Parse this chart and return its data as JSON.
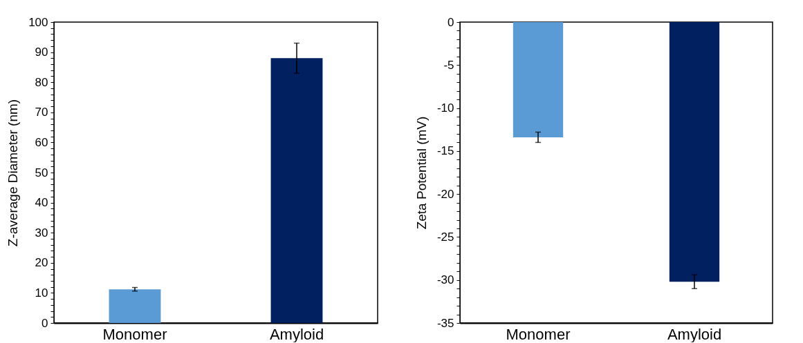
{
  "chart_data": [
    {
      "type": "bar",
      "categories": [
        "Monomer",
        "Amyloid"
      ],
      "values": [
        11.2,
        88
      ],
      "errors": [
        0.6,
        5
      ],
      "colors": [
        "#5b9bd5",
        "#002060"
      ],
      "ylabel": "Z-average Diameter (nm)",
      "ylim": [
        0,
        100
      ],
      "yticks": [
        0,
        {
          "value": 2,
          "label": null
        },
        {
          "value": 4,
          "label": null
        },
        {
          "value": 6,
          "label": null
        },
        {
          "value": 8,
          "label": null
        },
        10,
        {
          "value": 12,
          "label": null
        },
        {
          "value": 14,
          "label": null
        },
        {
          "value": 16,
          "label": null
        },
        {
          "value": 18,
          "label": null
        },
        20,
        {
          "value": 22,
          "label": null
        },
        {
          "value": 24,
          "label": null
        },
        {
          "value": 26,
          "label": null
        },
        {
          "value": 28,
          "label": null
        },
        30,
        {
          "value": 32,
          "label": null
        },
        {
          "value": 34,
          "label": null
        },
        {
          "value": 36,
          "label": null
        },
        {
          "value": 38,
          "label": null
        },
        40,
        {
          "value": 42,
          "label": null
        },
        {
          "value": 44,
          "label": null
        },
        {
          "value": 46,
          "label": null
        },
        {
          "value": 48,
          "label": null
        },
        50,
        {
          "value": 52,
          "label": null
        },
        {
          "value": 54,
          "label": null
        },
        {
          "value": 56,
          "label": null
        },
        {
          "value": 58,
          "label": null
        },
        60,
        {
          "value": 62,
          "label": null
        },
        {
          "value": 64,
          "label": null
        },
        {
          "value": 66,
          "label": null
        },
        {
          "value": 68,
          "label": null
        },
        70,
        {
          "value": 72,
          "label": null
        },
        {
          "value": 74,
          "label": null
        },
        {
          "value": 76,
          "label": null
        },
        {
          "value": 78,
          "label": null
        },
        80,
        {
          "value": 82,
          "label": null
        },
        {
          "value": 84,
          "label": null
        },
        {
          "value": 86,
          "label": null
        },
        {
          "value": 88,
          "label": null
        },
        90,
        {
          "value": 92,
          "label": null
        },
        {
          "value": 94,
          "label": null
        },
        {
          "value": 96,
          "label": null
        },
        {
          "value": 98,
          "label": null
        },
        100
      ],
      "grid": false
    },
    {
      "type": "bar",
      "categories": [
        "Monomer",
        "Amyloid"
      ],
      "values": [
        -13.4,
        -30.2
      ],
      "errors": [
        0.6,
        0.8
      ],
      "colors": [
        "#5b9bd5",
        "#002060"
      ],
      "ylabel": "Zeta Potential (mV)",
      "ylim": [
        -35,
        0
      ],
      "yticks": [
        0,
        {
          "value": -1,
          "label": null
        },
        {
          "value": -2,
          "label": null
        },
        {
          "value": -3,
          "label": null
        },
        {
          "value": -4,
          "label": null
        },
        -5,
        {
          "value": -6,
          "label": null
        },
        {
          "value": -7,
          "label": null
        },
        {
          "value": -8,
          "label": null
        },
        {
          "value": -9,
          "label": null
        },
        -10,
        {
          "value": -11,
          "label": null
        },
        {
          "value": -12,
          "label": null
        },
        {
          "value": -13,
          "label": null
        },
        {
          "value": -14,
          "label": null
        },
        -15,
        {
          "value": -16,
          "label": null
        },
        {
          "value": -17,
          "label": null
        },
        {
          "value": -18,
          "label": null
        },
        {
          "value": -19,
          "label": null
        },
        -20,
        {
          "value": -21,
          "label": null
        },
        {
          "value": -22,
          "label": null
        },
        {
          "value": -23,
          "label": null
        },
        {
          "value": -24,
          "label": null
        },
        -25,
        {
          "value": -26,
          "label": null
        },
        {
          "value": -27,
          "label": null
        },
        {
          "value": -28,
          "label": null
        },
        {
          "value": -29,
          "label": null
        },
        -30,
        {
          "value": -31,
          "label": null
        },
        {
          "value": -32,
          "label": null
        },
        {
          "value": -33,
          "label": null
        },
        {
          "value": -34,
          "label": null
        },
        -35
      ],
      "grid": false
    }
  ]
}
